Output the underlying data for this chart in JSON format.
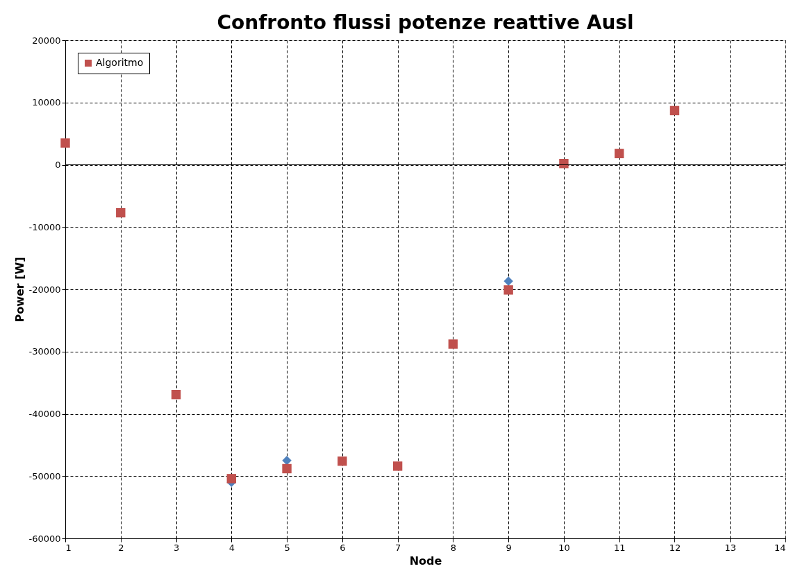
{
  "chart_data": {
    "type": "scatter",
    "title": "Confronto flussi potenze reattive Ausl",
    "xlabel": "Node",
    "ylabel": "Power [W]",
    "x": [
      1,
      2,
      3,
      4,
      5,
      6,
      7,
      8,
      9,
      10,
      11,
      12
    ],
    "series": [
      {
        "color": "#4f81bd",
        "marker": "diamond",
        "values": [
          null,
          null,
          null,
          -51000,
          -47500,
          null,
          null,
          null,
          -18700,
          null,
          null,
          null
        ]
      },
      {
        "name": "Algoritmo",
        "color": "#c0504d",
        "marker": "square",
        "values": [
          3500,
          -7700,
          -36900,
          -50400,
          -48800,
          -47600,
          -48400,
          -28800,
          -20100,
          200,
          1800,
          8700
        ]
      }
    ],
    "xlim": [
      1,
      14
    ],
    "xticks": [
      1,
      2,
      3,
      4,
      5,
      6,
      7,
      8,
      9,
      10,
      11,
      12,
      13,
      14
    ],
    "ylim": [
      -60000,
      20000
    ],
    "yticks": [
      -60000,
      -50000,
      -40000,
      -30000,
      -20000,
      -10000,
      0,
      10000,
      20000
    ],
    "grid": true,
    "line_style": "dashed",
    "legend": "top left"
  }
}
